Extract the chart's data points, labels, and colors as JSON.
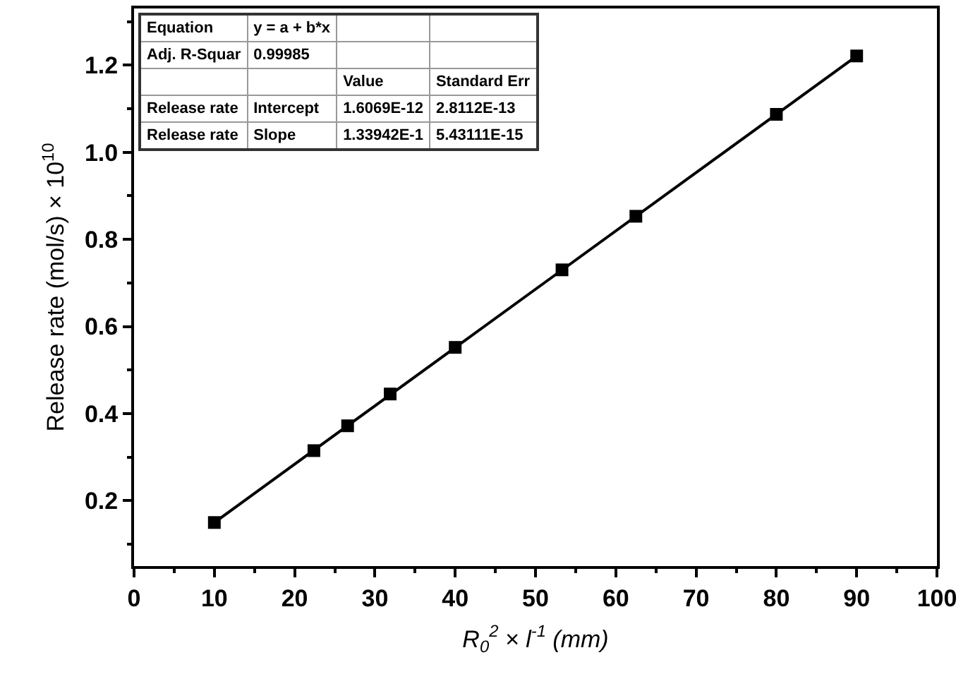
{
  "chart_data": {
    "type": "scatter",
    "xlabel": "R$_{0}$$^{2}$ × l$^{-1}$ (mm)",
    "ylabel": "Release rate (mol/s) × 10$^{10}$",
    "xlim": [
      0,
      100
    ],
    "xticks": [
      0,
      10,
      20,
      30,
      40,
      50,
      60,
      70,
      80,
      90,
      100
    ],
    "ylim": [
      0.05,
      1.33
    ],
    "yticks": [
      0.2,
      0.4,
      0.6,
      0.8,
      {
        "value": 1,
        "label": "1.0"
      },
      1.2
    ],
    "series": [
      {
        "type": "scatter",
        "marker": "square",
        "color": "#000000",
        "x": [
          10,
          22.4,
          26.6,
          31.9,
          40,
          53.3,
          62.5,
          80,
          90
        ],
        "values": [
          0.15,
          0.315,
          0.372,
          0.445,
          0.552,
          0.73,
          0.853,
          1.087,
          1.221
        ]
      },
      {
        "type": "line",
        "marker": "none",
        "line_style": "solid",
        "color": "#000000",
        "x": [
          10,
          90
        ],
        "values": [
          0.15,
          1.221
        ]
      }
    ],
    "annotations": [
      "Equation",
      "y = a + b*x",
      "Adj. R-Squar",
      "0.99985",
      "Value",
      "Standard Err",
      "Release rate",
      "Intercept",
      "1.6069E-12",
      "2.8112E-13",
      "Release rate",
      "Slope",
      "1.33942E-1",
      "5.43111E-15"
    ]
  }
}
